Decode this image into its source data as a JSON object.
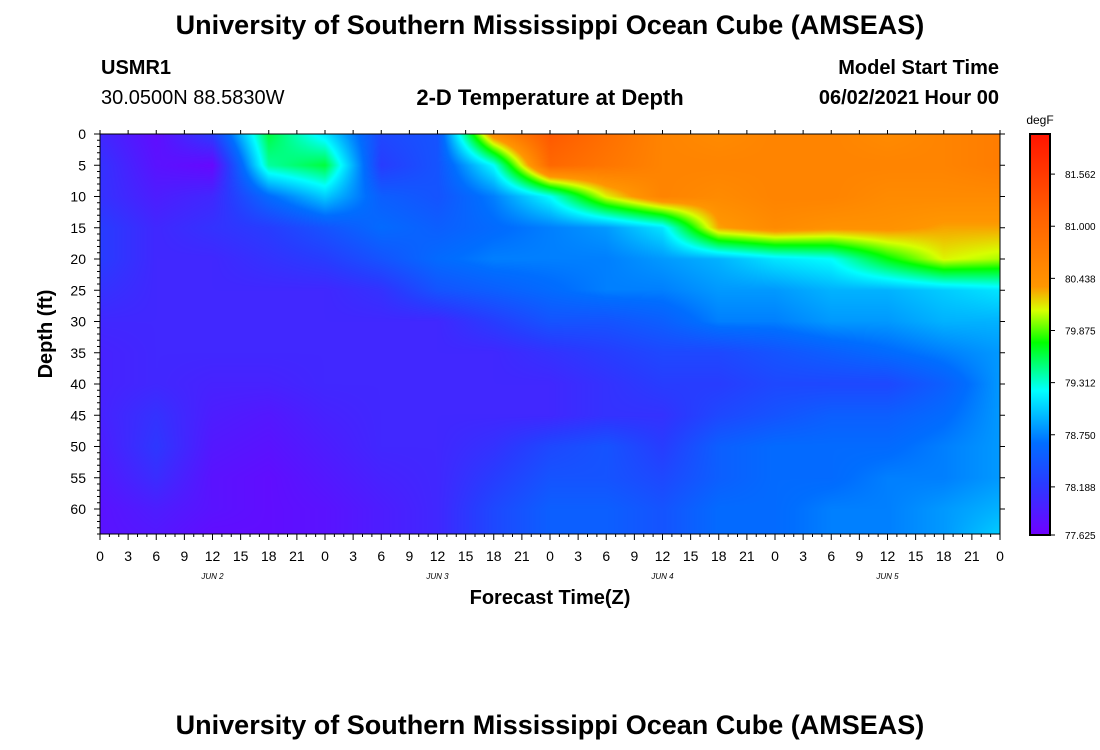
{
  "header": {
    "title": "University of Southern Mississippi Ocean Cube (AMSEAS)",
    "station_id": "USMR1",
    "coords": "30.0500N  88.5830W",
    "product": "2-D Temperature at Depth",
    "start_label": "Model Start Time",
    "start_value": "06/02/2021 Hour 00"
  },
  "footer": {
    "title": "University of Southern Mississippi Ocean Cube (AMSEAS)"
  },
  "chart_data": {
    "type": "heatmap",
    "title": "2-D Temperature at Depth",
    "xlabel": "Forecast Time(Z)",
    "ylabel": "Depth (ft)",
    "x_tick_labels": [
      "0",
      "3",
      "6",
      "9",
      "12",
      "15",
      "18",
      "21",
      "0",
      "3",
      "6",
      "9",
      "12",
      "15",
      "18",
      "21",
      "0",
      "3",
      "6",
      "9",
      "12",
      "15",
      "18",
      "21",
      "0",
      "3",
      "6",
      "9",
      "12",
      "15",
      "18",
      "21",
      "0"
    ],
    "date_labels": [
      {
        "label": "JUN 2",
        "hour": 12
      },
      {
        "label": "JUN 3",
        "hour": 36
      },
      {
        "label": "JUN 4",
        "hour": 60
      },
      {
        "label": "JUN 5",
        "hour": 84
      }
    ],
    "xlim": [
      0,
      96
    ],
    "y_tick_labels": [
      "0",
      "5",
      "10",
      "15",
      "20",
      "25",
      "30",
      "35",
      "40",
      "45",
      "50",
      "55",
      "60"
    ],
    "ylim": [
      0,
      64
    ],
    "y_inverted": true,
    "colorbar": {
      "unit": "degF",
      "tick_labels": [
        "81.562",
        "81.000",
        "80.438",
        "79.875",
        "79.312",
        "78.750",
        "78.188",
        "77.625"
      ],
      "range": [
        77.625,
        82.0
      ]
    },
    "hours": [
      0,
      6,
      12,
      18,
      24,
      30,
      36,
      42,
      48,
      54,
      60,
      66,
      72,
      78,
      84,
      90,
      96
    ],
    "depths": [
      0,
      5,
      10,
      15,
      20,
      25,
      30,
      35,
      40,
      45,
      50,
      55,
      60,
      64
    ],
    "values": [
      [
        78.0,
        77.75,
        78.2,
        79.6,
        79.1,
        78.3,
        78.4,
        80.5,
        81.2,
        80.9,
        80.6,
        80.5,
        80.6,
        80.6,
        80.5,
        80.6,
        80.7
      ],
      [
        78.1,
        77.8,
        77.7,
        79.4,
        79.6,
        78.2,
        78.4,
        79.2,
        81.0,
        80.8,
        80.6,
        80.6,
        80.6,
        80.6,
        80.6,
        80.6,
        80.7
      ],
      [
        78.1,
        77.9,
        78.0,
        78.6,
        79.0,
        78.5,
        78.4,
        78.7,
        79.2,
        80.1,
        80.6,
        80.5,
        80.6,
        80.6,
        80.5,
        80.5,
        80.5
      ],
      [
        78.2,
        78.0,
        78.1,
        78.2,
        78.4,
        78.6,
        78.5,
        78.6,
        78.7,
        78.8,
        79.1,
        80.3,
        80.5,
        80.4,
        80.4,
        80.3,
        80.3
      ],
      [
        78.2,
        78.0,
        78.0,
        78.1,
        78.2,
        78.4,
        78.6,
        78.7,
        78.7,
        78.7,
        78.8,
        78.9,
        79.1,
        79.2,
        79.7,
        80.1,
        80.0
      ],
      [
        78.1,
        78.0,
        78.0,
        78.0,
        78.0,
        78.1,
        78.4,
        78.5,
        78.6,
        78.7,
        78.7,
        78.8,
        78.8,
        78.9,
        78.9,
        79.0,
        79.1
      ],
      [
        78.0,
        78.0,
        78.0,
        78.0,
        78.0,
        78.0,
        78.0,
        78.2,
        78.4,
        78.4,
        78.5,
        78.7,
        78.7,
        78.8,
        78.8,
        78.9,
        78.9
      ],
      [
        77.95,
        78.0,
        78.0,
        78.0,
        78.0,
        78.0,
        78.0,
        78.0,
        78.1,
        78.2,
        78.3,
        78.3,
        78.4,
        78.5,
        78.6,
        78.7,
        78.8
      ],
      [
        77.95,
        78.0,
        77.95,
        77.95,
        78.0,
        78.0,
        78.0,
        78.0,
        78.0,
        78.1,
        78.2,
        78.2,
        78.3,
        78.3,
        78.3,
        78.5,
        78.8
      ],
      [
        77.95,
        78.1,
        77.9,
        77.85,
        77.95,
        78.0,
        78.0,
        78.0,
        78.0,
        78.1,
        78.1,
        78.3,
        78.4,
        78.5,
        78.5,
        78.6,
        78.8
      ],
      [
        77.9,
        78.15,
        77.85,
        77.8,
        77.9,
        78.0,
        78.0,
        78.1,
        78.3,
        78.4,
        78.2,
        78.5,
        78.6,
        78.6,
        78.6,
        78.7,
        78.8
      ],
      [
        77.85,
        78.05,
        77.8,
        77.75,
        77.85,
        77.95,
        78.0,
        78.2,
        78.4,
        78.4,
        78.3,
        78.5,
        78.6,
        78.6,
        78.7,
        78.7,
        78.8
      ],
      [
        77.8,
        77.9,
        77.8,
        77.75,
        77.8,
        77.9,
        78.0,
        78.3,
        78.5,
        78.5,
        78.4,
        78.6,
        78.6,
        78.7,
        78.7,
        78.8,
        78.9
      ],
      [
        77.8,
        77.85,
        77.75,
        77.75,
        77.8,
        77.9,
        78.0,
        78.3,
        78.5,
        78.5,
        78.4,
        78.6,
        78.6,
        78.7,
        78.7,
        78.8,
        79.0
      ]
    ]
  }
}
